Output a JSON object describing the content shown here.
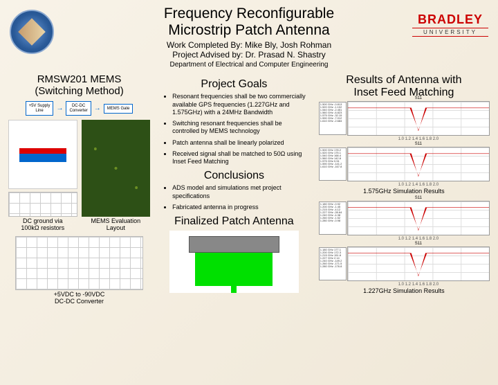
{
  "header": {
    "title_line1": "Frequency Reconfigurable",
    "title_line2": "Microstrip Patch Antenna",
    "work_by": "Work Completed By: Mike Bly, Josh Rohman",
    "advised_by": "Project Advised by:  Dr. Prasad N. Shastry",
    "department": "Department of Electrical and Computer Engineering",
    "logo_right_name": "BRADLEY",
    "logo_right_sub": "UNIVERSITY"
  },
  "left": {
    "title_line1": "RMSW201 MEMS",
    "title_line2": "(Switching Method)",
    "blocks": {
      "b1": "+5V Supply\nLine",
      "b2": "DC-DC\nConverter",
      "b3": "MEMS Gate"
    },
    "caption1": "DC ground via\n100kΩ resistors",
    "caption2": "MEMS Evaluation\nLayout",
    "caption3": "+5VDC to -90VDC\nDC-DC Converter"
  },
  "mid": {
    "goals_title": "Project Goals",
    "goals": [
      "Resonant frequencies shall be two commercially available GPS frequencies (1.227GHz and 1.575GHz) with a 24MHz Bandwidth",
      "Switching resonant frequencies shall be controlled by MEMS technology",
      "Patch antenna shall be linearly polarized",
      "Received signal shall be matched to 50Ω using Inset Feed Matching"
    ],
    "concl_title": "Conclusions",
    "conclusions": [
      "ADS model and simulations met project specifications",
      "Fabricated antenna in progress"
    ],
    "final_title": "Finalized Patch Antenna"
  },
  "right": {
    "title_line1": "Results of Antenna with",
    "title_line2": "Inset Feed Matching",
    "caption1": "1.575GHz Simulation Results",
    "caption2": "1.227GHz Simulation Results",
    "graph_title": "S11",
    "xaxis": "Frequency",
    "xticks": "1.0   1.2   1.4   1.6   1.8   2.0"
  }
}
